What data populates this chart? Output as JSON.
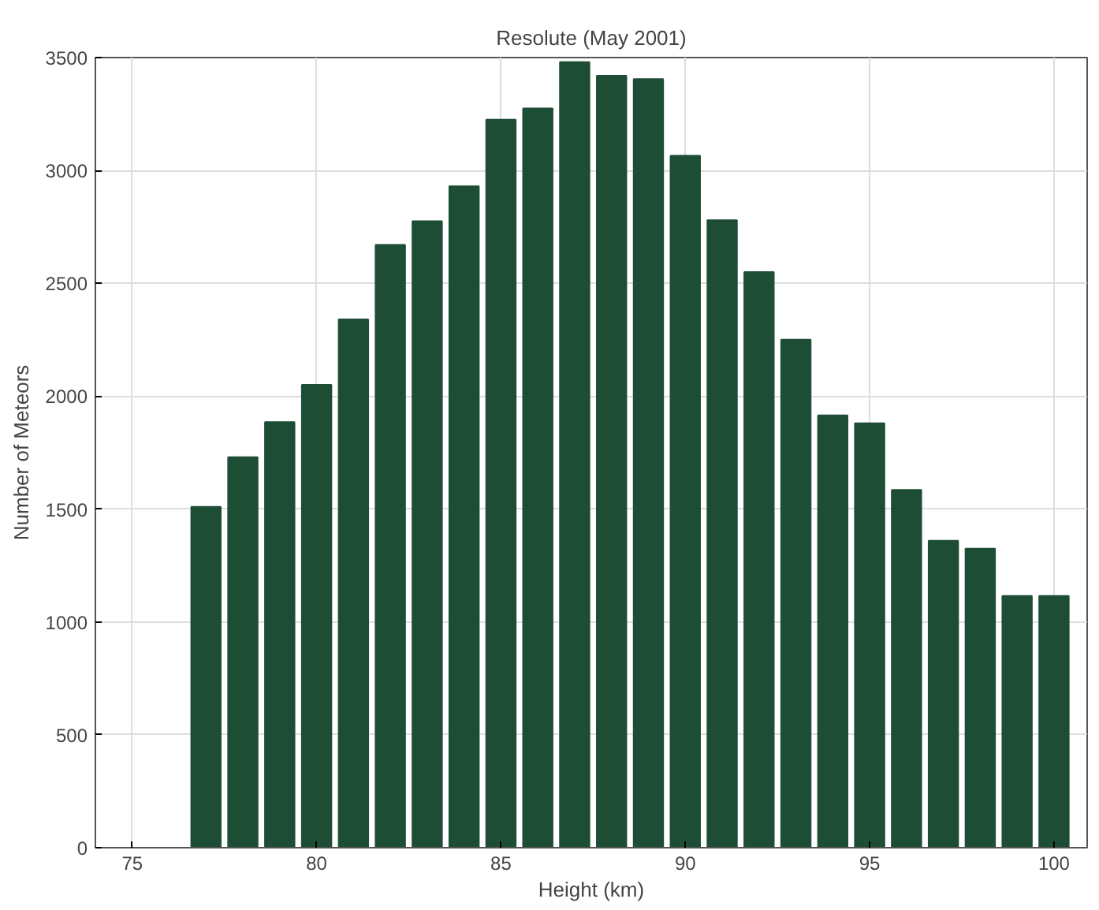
{
  "chart_data": {
    "type": "bar",
    "title": "Resolute (May 2001)",
    "xlabel": "Height (km)",
    "ylabel": "Number of Meteors",
    "x": [
      77,
      78,
      79,
      80,
      81,
      82,
      83,
      84,
      85,
      86,
      87,
      88,
      89,
      90,
      91,
      92,
      93,
      94,
      95,
      96,
      97,
      98,
      99,
      100
    ],
    "values": [
      1510,
      1730,
      1885,
      2050,
      2340,
      2670,
      2775,
      2930,
      3225,
      3275,
      3480,
      3420,
      3405,
      3065,
      2780,
      2550,
      2250,
      1915,
      1880,
      1585,
      1360,
      1325,
      1115,
      1115
    ],
    "color": "#1e4d36",
    "xlim": [
      74,
      100.9
    ],
    "xticks": [
      75,
      80,
      85,
      90,
      95,
      100
    ],
    "ylim": [
      0,
      3500
    ],
    "yticks": [
      0,
      500,
      1000,
      1500,
      2000,
      2500,
      3000,
      3500
    ],
    "grid": true
  }
}
